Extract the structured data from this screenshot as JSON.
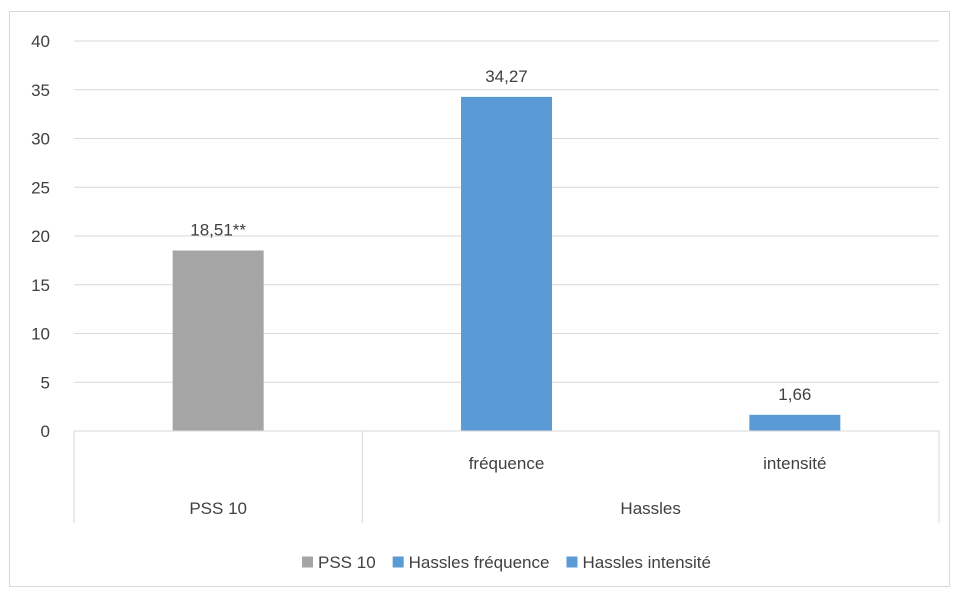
{
  "chart_data": {
    "type": "bar",
    "title": "",
    "xlabel": "",
    "ylabel": "",
    "ylim": [
      0,
      40
    ],
    "yticks": [
      0,
      5,
      10,
      15,
      20,
      25,
      30,
      35,
      40
    ],
    "grid": true,
    "legend_position": "bottom",
    "group_labels": [
      "PSS 10",
      "Hassles"
    ],
    "bars": [
      {
        "series": "PSS 10",
        "group": "PSS 10",
        "sublabel": "",
        "value": 18.51,
        "label": "18,51**",
        "color": "#a5a5a5"
      },
      {
        "series": "Hassles fréquence",
        "group": "Hassles",
        "sublabel": "fréquence",
        "value": 34.27,
        "label": "34,27",
        "color": "#5b9bd5"
      },
      {
        "series": "Hassles intensité",
        "group": "Hassles",
        "sublabel": "intensité",
        "value": 1.66,
        "label": "1,66",
        "color": "#5b9bd5"
      }
    ],
    "legend": [
      {
        "name": "PSS 10",
        "color": "#a5a5a5"
      },
      {
        "name": "Hassles fréquence",
        "color": "#5b9bd5"
      },
      {
        "name": "Hassles intensité",
        "color": "#5b9bd5"
      }
    ]
  }
}
